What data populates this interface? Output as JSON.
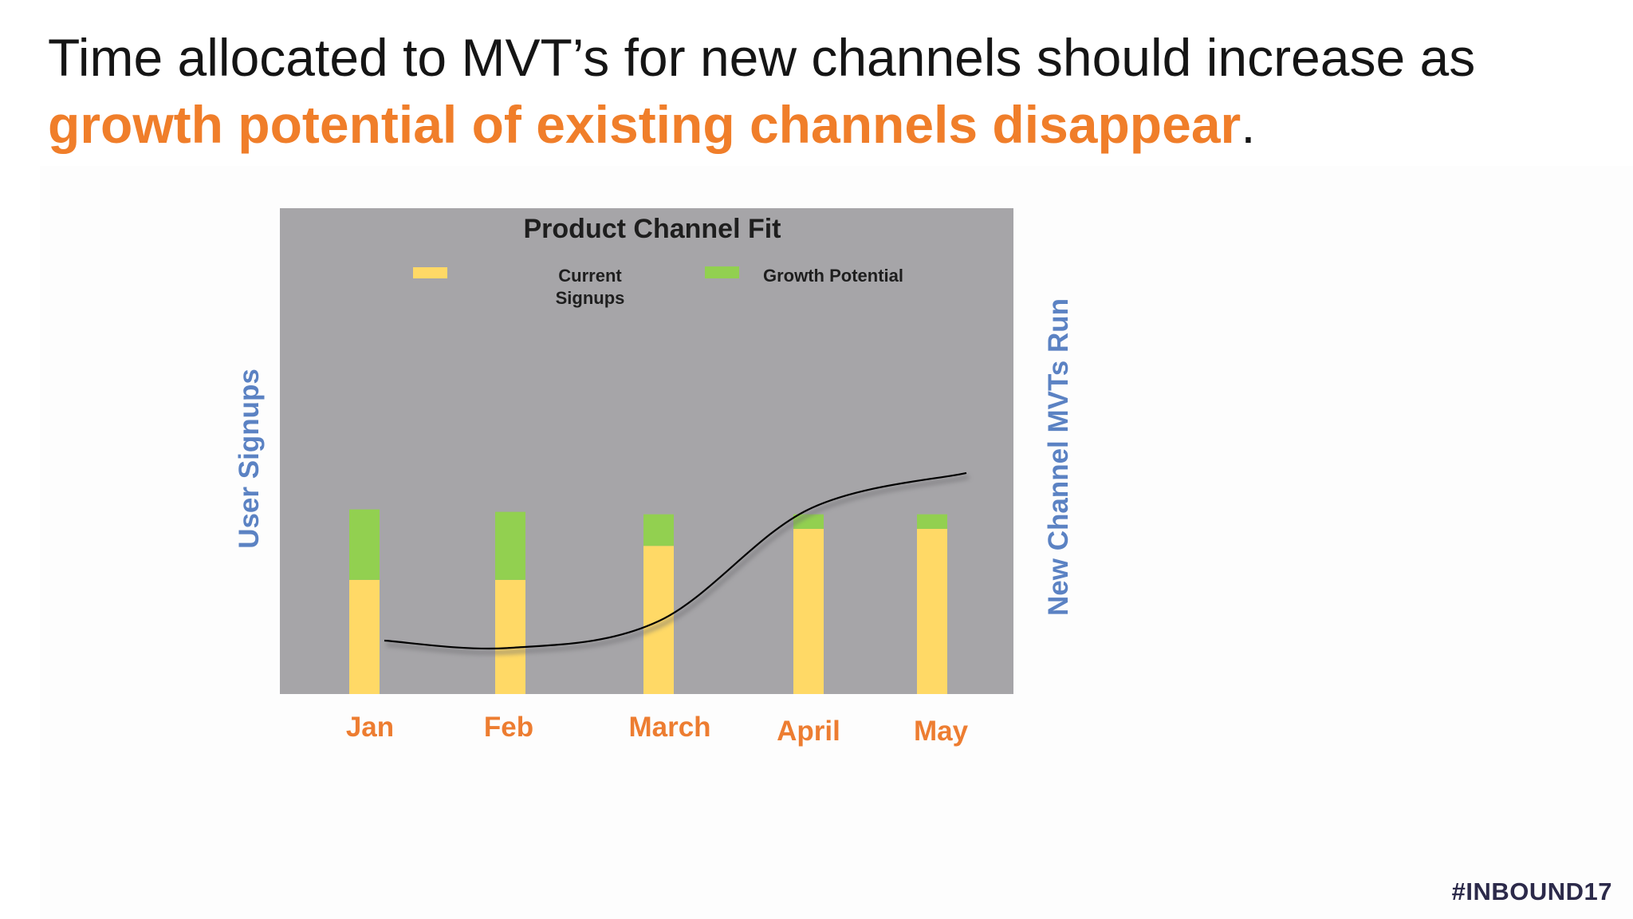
{
  "slide": {
    "headline_part1": "Time allocated to MVT’s for new channels should increase as",
    "headline_highlight": "growth potential of existing channels disappear",
    "headline_end": ".",
    "hashtag": "#INBOUND17",
    "accent_color": "#f07e2a"
  },
  "chart_data": {
    "type": "bar",
    "title": "Product Channel Fit",
    "categories": [
      "Jan",
      "Feb",
      "March",
      "April",
      "May"
    ],
    "ylabel": "User Signups",
    "y2label": "New Channel MVTs Run",
    "stacked": true,
    "grid": false,
    "ylim": [
      0,
      100
    ],
    "legend_position": "top",
    "series": [
      {
        "name": "Current\nSignups",
        "color": "#ffd966",
        "values": [
          23.5,
          23.5,
          30.5,
          34,
          34
        ]
      },
      {
        "name": "Growth Potential",
        "color": "#92d050",
        "values": [
          14.5,
          14,
          6.5,
          3,
          3
        ]
      }
    ],
    "line": {
      "color": "#000000",
      "values": [
        11,
        9.5,
        15,
        38,
        45.5
      ]
    },
    "background_color": "#a6a5a8",
    "category_label_color": "#ed7d31"
  }
}
